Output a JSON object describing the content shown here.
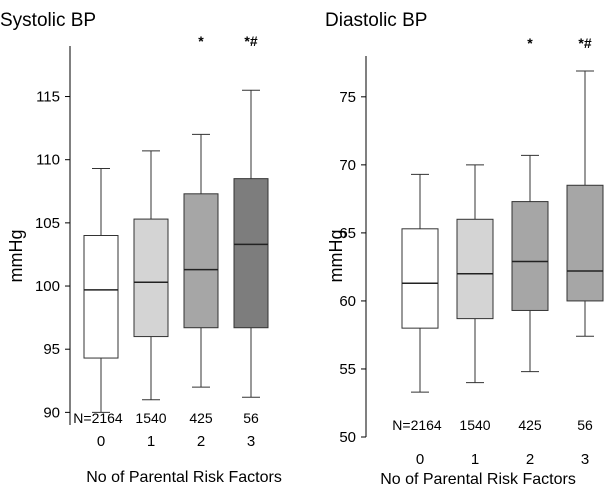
{
  "chart_data": [
    {
      "type": "box",
      "title": "Systolic BP",
      "ylabel": "mmHg",
      "xlabel": "No of Parental Risk Factors",
      "ylim": [
        89,
        119
      ],
      "yticks": [
        90,
        95,
        100,
        105,
        110,
        115
      ],
      "categories": [
        "0",
        "1",
        "2",
        "3"
      ],
      "counts": [
        "N=2164",
        "1540",
        "425",
        "56"
      ],
      "significance": [
        "",
        "",
        "*",
        "*#"
      ],
      "box_colors": [
        "#ffffff",
        "#d4d4d4",
        "#a6a6a6",
        "#7d7d7d"
      ],
      "boxes": [
        {
          "whisker_low": 90.0,
          "q1": 94.3,
          "median": 99.7,
          "q3": 104.0,
          "whisker_high": 109.3
        },
        {
          "whisker_low": 91.0,
          "q1": 96.0,
          "median": 100.3,
          "q3": 105.3,
          "whisker_high": 110.7
        },
        {
          "whisker_low": 92.0,
          "q1": 96.7,
          "median": 101.3,
          "q3": 107.3,
          "whisker_high": 112.0
        },
        {
          "whisker_low": 91.2,
          "q1": 96.7,
          "median": 103.3,
          "q3": 108.5,
          "whisker_high": 115.5
        }
      ]
    },
    {
      "type": "box",
      "title": "Diastolic BP",
      "ylabel": "mmHg",
      "xlabel": "No of Parental Risk Factors",
      "ylim": [
        50,
        78
      ],
      "yticks": [
        50,
        55,
        60,
        65,
        70,
        75
      ],
      "categories": [
        "0",
        "1",
        "2",
        "3"
      ],
      "counts": [
        "N=2164",
        "1540",
        "425",
        "56"
      ],
      "significance": [
        "",
        "",
        "*",
        "*#"
      ],
      "box_colors": [
        "#ffffff",
        "#d4d4d4",
        "#a6a6a6",
        "#a6a6a6"
      ],
      "boxes": [
        {
          "whisker_low": 53.3,
          "q1": 58.0,
          "median": 61.3,
          "q3": 65.3,
          "whisker_high": 69.3
        },
        {
          "whisker_low": 54.0,
          "q1": 58.7,
          "median": 62.0,
          "q3": 66.0,
          "whisker_high": 70.0
        },
        {
          "whisker_low": 54.8,
          "q1": 59.3,
          "median": 62.9,
          "q3": 67.3,
          "whisker_high": 70.7
        },
        {
          "whisker_low": 57.4,
          "q1": 60.0,
          "median": 62.2,
          "q3": 68.5,
          "whisker_high": 76.9
        }
      ]
    }
  ]
}
